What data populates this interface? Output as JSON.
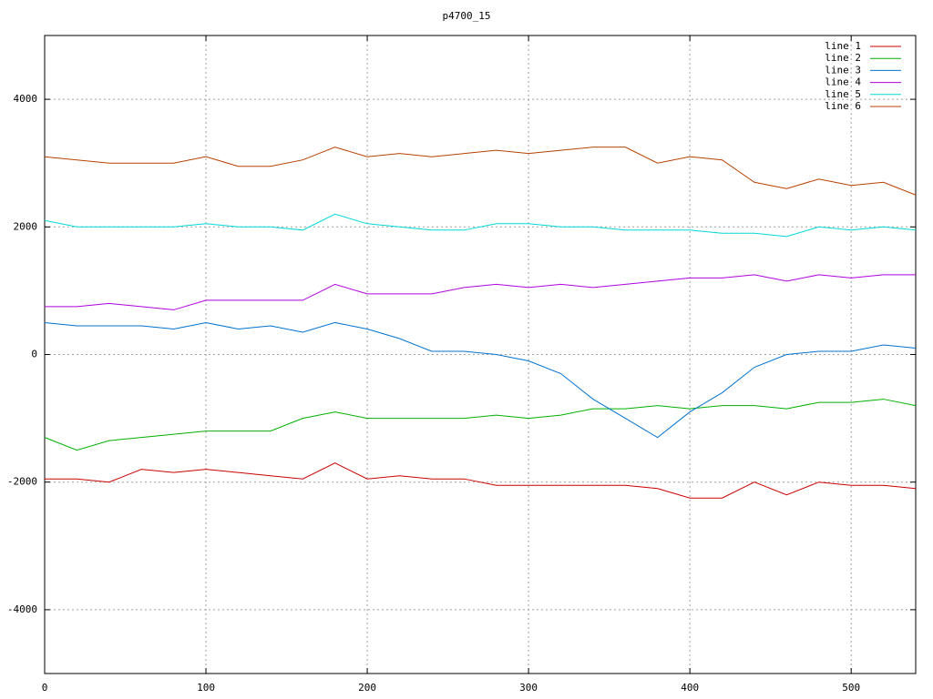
{
  "chart_data": {
    "type": "line",
    "title": "p4700_15",
    "x": [
      0,
      20,
      40,
      60,
      80,
      100,
      120,
      140,
      160,
      180,
      200,
      220,
      240,
      260,
      280,
      300,
      320,
      340,
      360,
      380,
      400,
      420,
      440,
      460,
      480,
      500,
      520,
      540
    ],
    "series": [
      {
        "name": "line 1",
        "color": "#cc0000",
        "values": [
          -1950,
          -1950,
          -2000,
          -1800,
          -1850,
          -1800,
          -1850,
          -1900,
          -1950,
          -1700,
          -1950,
          -1900,
          -1950,
          -1950,
          -2050,
          -2050,
          -2050,
          -2050,
          -2050,
          -2100,
          -2250,
          -2250,
          -2000,
          -2200,
          -2000,
          -2050,
          -2050,
          -2100
        ]
      },
      {
        "name": "line 2",
        "color": "#00b000",
        "values": [
          -1300,
          -1500,
          -1350,
          -1300,
          -1250,
          -1200,
          -1200,
          -1200,
          -1000,
          -900,
          -1000,
          -1000,
          -1000,
          -1000,
          -950,
          -1000,
          -950,
          -850,
          -850,
          -800,
          -850,
          -800,
          -800,
          -850,
          -750,
          -750,
          -700,
          -800
        ]
      },
      {
        "name": "line 3",
        "color": "#0072d0",
        "values": [
          500,
          450,
          450,
          450,
          400,
          500,
          400,
          450,
          350,
          500,
          400,
          250,
          50,
          50,
          0,
          -100,
          -300,
          -700,
          -1000,
          -1300,
          -900,
          -600,
          -200,
          0,
          50,
          50,
          150,
          100
        ]
      },
      {
        "name": "line 4",
        "color": "#b000e0",
        "values": [
          750,
          750,
          800,
          750,
          700,
          850,
          850,
          850,
          850,
          1100,
          950,
          950,
          950,
          1050,
          1100,
          1050,
          1100,
          1050,
          1100,
          1150,
          1200,
          1200,
          1250,
          1150,
          1250,
          1200,
          1250,
          1250
        ]
      },
      {
        "name": "line 5",
        "color": "#00d8d8",
        "values": [
          2100,
          2000,
          2000,
          2000,
          2000,
          2050,
          2000,
          2000,
          1950,
          2200,
          2050,
          2000,
          1950,
          1950,
          2050,
          2050,
          2000,
          2000,
          1950,
          1950,
          1950,
          1900,
          1900,
          1850,
          2000,
          1950,
          2000,
          1950
        ]
      },
      {
        "name": "line 6",
        "color": "#b84000",
        "values": [
          3100,
          3050,
          3000,
          3000,
          3000,
          3100,
          2950,
          2950,
          3050,
          3250,
          3100,
          3150,
          3100,
          3150,
          3200,
          3150,
          3200,
          3250,
          3250,
          3000,
          3100,
          3050,
          2700,
          2600,
          2750,
          2650,
          2700,
          2500
        ]
      }
    ],
    "xlim": [
      0,
      540
    ],
    "ylim": [
      -5000,
      5000
    ],
    "xticks": [
      0,
      100,
      200,
      300,
      400,
      500
    ],
    "yticks": [
      -4000,
      -2000,
      0,
      2000,
      4000
    ],
    "grid": true,
    "legend": "top-right"
  }
}
